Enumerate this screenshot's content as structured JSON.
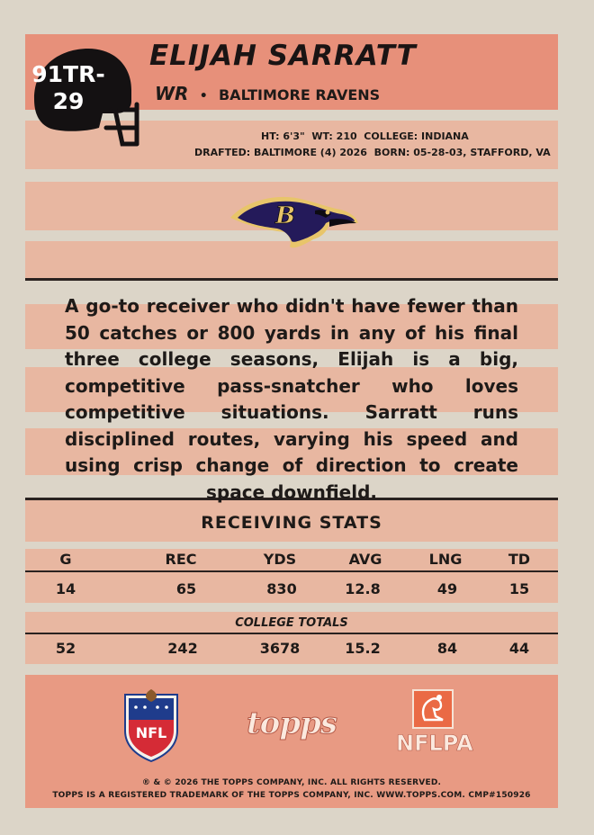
{
  "card_number": [
    "91TR-",
    "29"
  ],
  "player": {
    "name": "ELIJAH SARRATT",
    "position": "WR",
    "separator": "•",
    "team": "BALTIMORE RAVENS"
  },
  "bio": {
    "line1": "HT: 6'3\"  WT: 210  COLLEGE: INDIANA",
    "line2": "DRAFTED: BALTIMORE (4) 2026  BORN: 05-28-03, STAFFORD, VA"
  },
  "icons": {
    "helmet": "football-helmet-icon",
    "team_logo": "ravens-logo",
    "nfl": "nfl-shield-logo",
    "topps": "topps-logo",
    "nflpa": "nflpa-logo"
  },
  "description": "A go-to receiver who didn't have fewer than 50 catches or 800 yards in any of his final three college seasons, Elijah is a big, competitive pass-snatcher who loves competitive situations. Sarratt runs disciplined routes, varying his speed and using crisp change of direction to create space downfield.",
  "stats": {
    "title": "RECEIVING STATS",
    "headers": [
      "G",
      "REC",
      "YDS",
      "AVG",
      "LNG",
      "TD"
    ],
    "season": [
      "14",
      "65",
      "830",
      "12.8",
      "49",
      "15"
    ],
    "totals_label": "COLLEGE TOTALS",
    "totals": [
      "52",
      "242",
      "3678",
      "15.2",
      "84",
      "44"
    ]
  },
  "footer": {
    "topps": "topps",
    "nfl": "NFL",
    "nflpa": "NFLPA",
    "legal1": "® & © 2026 THE TOPPS COMPANY, INC. ALL RIGHTS RESERVED.",
    "legal2": "TOPPS IS A REGISTERED TRADEMARK OF THE TOPPS COMPANY, INC. WWW.TOPPS.COM. CMP#150926"
  },
  "colors": {
    "band": "#e7907a",
    "stripe": "#e8b7a1",
    "card": "#dcd5c8"
  }
}
